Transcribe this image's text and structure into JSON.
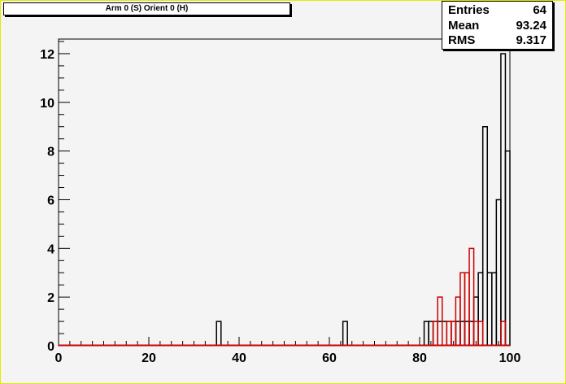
{
  "title": "Arm 0 (S) Orient 0 (H)",
  "stats": [
    {
      "label": "Entries",
      "value": "64"
    },
    {
      "label": "Mean",
      "value": "93.24"
    },
    {
      "label": "RMS",
      "value": "9.317"
    }
  ],
  "chart_data": {
    "type": "bar",
    "title": "Arm 0 (S) Orient 0 (H)",
    "xlim": [
      0,
      100
    ],
    "ylim": [
      0,
      12.6
    ],
    "bin_width": 1,
    "x_ticks": [
      "0",
      "20",
      "40",
      "60",
      "80",
      "100"
    ],
    "y_ticks": [
      "0",
      "2",
      "4",
      "6",
      "8",
      "10",
      "12"
    ],
    "grid": false,
    "series": [
      {
        "color": "#000000",
        "bins": [
          {
            "x": 35,
            "y": 1
          },
          {
            "x": 63,
            "y": 1
          },
          {
            "x": 81,
            "y": 1
          },
          {
            "x": 82,
            "y": 1
          },
          {
            "x": 83,
            "y": 1
          },
          {
            "x": 84,
            "y": 1
          },
          {
            "x": 85,
            "y": 1
          },
          {
            "x": 86,
            "y": 1
          },
          {
            "x": 87,
            "y": 1
          },
          {
            "x": 88,
            "y": 1
          },
          {
            "x": 89,
            "y": 1
          },
          {
            "x": 90,
            "y": 1
          },
          {
            "x": 91,
            "y": 1
          },
          {
            "x": 92,
            "y": 2
          },
          {
            "x": 93,
            "y": 3
          },
          {
            "x": 94,
            "y": 9
          },
          {
            "x": 95,
            "y": 3
          },
          {
            "x": 96,
            "y": 3
          },
          {
            "x": 97,
            "y": 6
          },
          {
            "x": 98,
            "y": 12
          },
          {
            "x": 99,
            "y": 8
          }
        ]
      },
      {
        "color": "#cc0000",
        "bins": [
          {
            "x": 83,
            "y": 1
          },
          {
            "x": 84,
            "y": 2
          },
          {
            "x": 86,
            "y": 1
          },
          {
            "x": 87,
            "y": 1
          },
          {
            "x": 88,
            "y": 2
          },
          {
            "x": 89,
            "y": 3
          },
          {
            "x": 90,
            "y": 3
          },
          {
            "x": 91,
            "y": 4
          },
          {
            "x": 92,
            "y": 1
          },
          {
            "x": 93,
            "y": 1
          },
          {
            "x": 98,
            "y": 1
          }
        ]
      }
    ]
  }
}
